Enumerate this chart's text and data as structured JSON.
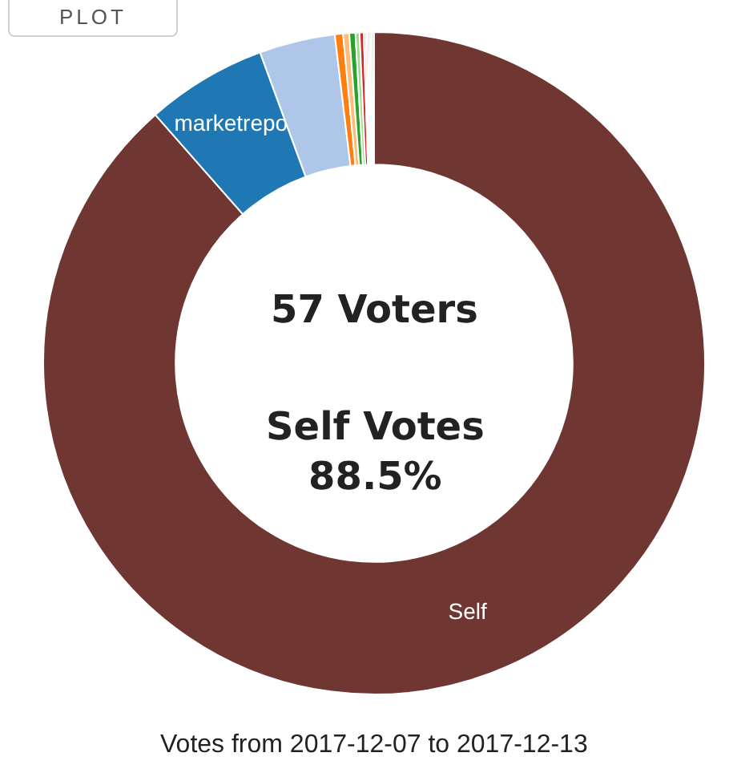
{
  "chart_data": {
    "type": "donut",
    "categories": [
      "Self",
      "marketrepo",
      null,
      null,
      null,
      null,
      null,
      null,
      null,
      null,
      null,
      null,
      null
    ],
    "values": [
      88.5,
      5.9,
      3.7,
      0.4,
      0.3,
      0.3,
      0.2,
      0.2,
      0.1,
      0.1,
      0.1,
      0.1,
      0.1
    ],
    "colors": [
      "#6f3632",
      "#1f77b4",
      "#aec7e8",
      "#ff7f0e",
      "#ffbb78",
      "#2ca02c",
      "#98df8a",
      "#d62728",
      "#ff9896",
      "#f7b6d2",
      "#c7c7c7",
      "#dbdb8d",
      "#9edae5"
    ],
    "annotations": [
      "PLOT",
      "57 Voters",
      "Self Votes\n88.5%",
      "Votes from 2017-12-07 to 2017-12-13"
    ]
  }
}
